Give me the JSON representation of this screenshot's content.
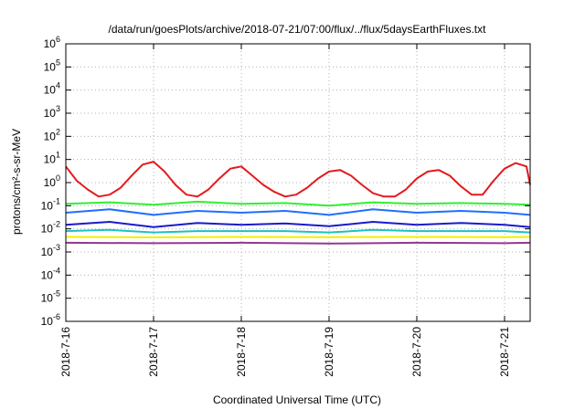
{
  "chart_data": {
    "type": "line",
    "title": "/data/run/goesPlots/archive/2018-07-21/07:00/flux/../flux/5daysEarthFluxes.txt",
    "xlabel": "Coordinated Universal Time (UTC)",
    "ylabel": "protons/cm²-s-sr-MeV",
    "yscale": "log",
    "ylim": [
      1e-06,
      1000000.0
    ],
    "xlim": [
      "2018-07-16 00:00",
      "2018-07-21 07:00"
    ],
    "x_ticks": [
      "2018-7-16",
      "2018-7-17",
      "2018-7-18",
      "2018-7-19",
      "2018-7-20",
      "2018-7-21"
    ],
    "y_ticks": [
      {
        "base": "10",
        "exp": "6"
      },
      {
        "base": "10",
        "exp": "5"
      },
      {
        "base": "10",
        "exp": "4"
      },
      {
        "base": "10",
        "exp": "3"
      },
      {
        "base": "10",
        "exp": "2"
      },
      {
        "base": "10",
        "exp": "1"
      },
      {
        "base": "10",
        "exp": "0"
      },
      {
        "base": "10",
        "exp": "-1"
      },
      {
        "base": "10",
        "exp": "-2"
      },
      {
        "base": "10",
        "exp": "-3"
      },
      {
        "base": "10",
        "exp": "-4"
      },
      {
        "base": "10",
        "exp": "-5"
      },
      {
        "base": "10",
        "exp": "-6"
      }
    ],
    "grid": true,
    "legend": "none",
    "series": [
      {
        "color": "#e41a1c",
        "x": [
          "2018-07-16 00:00",
          "2018-07-16 03:00",
          "2018-07-16 06:00",
          "2018-07-16 09:00",
          "2018-07-16 12:00",
          "2018-07-16 15:00",
          "2018-07-16 18:00",
          "2018-07-16 21:00",
          "2018-07-17 00:00",
          "2018-07-17 03:00",
          "2018-07-17 06:00",
          "2018-07-17 09:00",
          "2018-07-17 12:00",
          "2018-07-17 15:00",
          "2018-07-17 18:00",
          "2018-07-17 21:00",
          "2018-07-18 00:00",
          "2018-07-18 03:00",
          "2018-07-18 06:00",
          "2018-07-18 09:00",
          "2018-07-18 12:00",
          "2018-07-18 15:00",
          "2018-07-18 18:00",
          "2018-07-18 21:00",
          "2018-07-19 00:00",
          "2018-07-19 03:00",
          "2018-07-19 06:00",
          "2018-07-19 09:00",
          "2018-07-19 12:00",
          "2018-07-19 15:00",
          "2018-07-19 18:00",
          "2018-07-19 21:00",
          "2018-07-20 00:00",
          "2018-07-20 03:00",
          "2018-07-20 06:00",
          "2018-07-20 09:00",
          "2018-07-20 12:00",
          "2018-07-20 15:00",
          "2018-07-20 18:00",
          "2018-07-20 21:00",
          "2018-07-21 00:00",
          "2018-07-21 03:00",
          "2018-07-21 06:00",
          "2018-07-21 07:00"
        ],
        "y": [
          5,
          1.2,
          0.5,
          0.25,
          0.3,
          0.6,
          2,
          6,
          8,
          3,
          0.8,
          0.3,
          0.25,
          0.5,
          1.5,
          4,
          5,
          2,
          0.8,
          0.4,
          0.25,
          0.3,
          0.6,
          1.5,
          3,
          3.5,
          2,
          0.8,
          0.35,
          0.25,
          0.25,
          0.5,
          1.5,
          3,
          3.5,
          2,
          0.7,
          0.3,
          0.3,
          1.2,
          4,
          7,
          5,
          0.8
        ]
      },
      {
        "color": "#33ee33",
        "x": [
          "2018-07-16 00:00",
          "2018-07-16 12:00",
          "2018-07-17 00:00",
          "2018-07-17 12:00",
          "2018-07-18 00:00",
          "2018-07-18 12:00",
          "2018-07-19 00:00",
          "2018-07-19 12:00",
          "2018-07-20 00:00",
          "2018-07-20 12:00",
          "2018-07-21 00:00",
          "2018-07-21 07:00"
        ],
        "y": [
          0.12,
          0.14,
          0.11,
          0.15,
          0.12,
          0.13,
          0.1,
          0.14,
          0.12,
          0.13,
          0.12,
          0.11
        ]
      },
      {
        "color": "#1f6fff",
        "x": [
          "2018-07-16 00:00",
          "2018-07-16 12:00",
          "2018-07-17 00:00",
          "2018-07-17 12:00",
          "2018-07-18 00:00",
          "2018-07-18 12:00",
          "2018-07-19 00:00",
          "2018-07-19 12:00",
          "2018-07-20 00:00",
          "2018-07-20 12:00",
          "2018-07-21 00:00",
          "2018-07-21 07:00"
        ],
        "y": [
          0.05,
          0.07,
          0.04,
          0.06,
          0.05,
          0.06,
          0.04,
          0.07,
          0.05,
          0.06,
          0.05,
          0.04
        ]
      },
      {
        "color": "#1a1acc",
        "x": [
          "2018-07-16 00:00",
          "2018-07-16 12:00",
          "2018-07-17 00:00",
          "2018-07-17 12:00",
          "2018-07-18 00:00",
          "2018-07-18 12:00",
          "2018-07-19 00:00",
          "2018-07-19 12:00",
          "2018-07-20 00:00",
          "2018-07-20 12:00",
          "2018-07-21 00:00",
          "2018-07-21 07:00"
        ],
        "y": [
          0.015,
          0.02,
          0.012,
          0.018,
          0.015,
          0.017,
          0.013,
          0.02,
          0.015,
          0.018,
          0.015,
          0.012
        ]
      },
      {
        "color": "#20c0c0",
        "x": [
          "2018-07-16 00:00",
          "2018-07-16 12:00",
          "2018-07-17 00:00",
          "2018-07-17 12:00",
          "2018-07-18 00:00",
          "2018-07-18 12:00",
          "2018-07-19 00:00",
          "2018-07-19 12:00",
          "2018-07-20 00:00",
          "2018-07-20 12:00",
          "2018-07-21 00:00",
          "2018-07-21 07:00"
        ],
        "y": [
          0.008,
          0.009,
          0.007,
          0.008,
          0.008,
          0.008,
          0.007,
          0.009,
          0.008,
          0.008,
          0.008,
          0.007
        ]
      },
      {
        "color": "#f0f000",
        "x": [
          "2018-07-16 00:00",
          "2018-07-17 00:00",
          "2018-07-18 00:00",
          "2018-07-19 00:00",
          "2018-07-20 00:00",
          "2018-07-21 00:00",
          "2018-07-21 07:00"
        ],
        "y": [
          0.0045,
          0.0043,
          0.0045,
          0.0044,
          0.0045,
          0.0044,
          0.0045
        ]
      },
      {
        "color": "#8e3a8e",
        "x": [
          "2018-07-16 00:00",
          "2018-07-17 00:00",
          "2018-07-18 00:00",
          "2018-07-19 00:00",
          "2018-07-20 00:00",
          "2018-07-21 00:00",
          "2018-07-21 07:00"
        ],
        "y": [
          0.0025,
          0.0024,
          0.0025,
          0.0023,
          0.0025,
          0.0024,
          0.0025
        ]
      }
    ]
  }
}
